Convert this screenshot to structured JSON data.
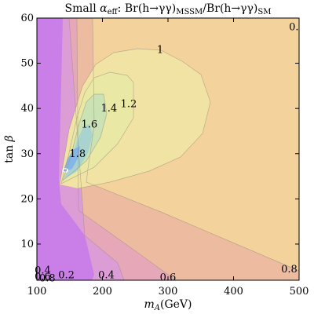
{
  "chart_data": {
    "type": "contour",
    "title": {
      "prefix": "Small ",
      "alpha": "α",
      "alpha_sub": "eff",
      "mid": ": Br(h→γγ)",
      "sub1": "MSSM",
      "slash": "/Br(h→γγ)",
      "sub2": "SM"
    },
    "xlabel": {
      "var": "m",
      "sub": "A",
      "unit": "(GeV)"
    },
    "ylabel": {
      "fn": "tan ",
      "sym": "β"
    },
    "xlim": [
      100,
      500
    ],
    "ylim": [
      2,
      60
    ],
    "xticks": [
      "100",
      "200",
      "300",
      "400",
      "500"
    ],
    "yticks": [
      "10",
      "20",
      "30",
      "40",
      "50",
      "60"
    ],
    "level_labels": [
      {
        "text": "0.",
        "x": 492,
        "y": 58
      },
      {
        "text": "1",
        "x": 288,
        "y": 53
      },
      {
        "text": "1.2",
        "x": 240,
        "y": 41
      },
      {
        "text": "1.4",
        "x": 210,
        "y": 40
      },
      {
        "text": "1.6",
        "x": 180,
        "y": 36.5
      },
      {
        "text": "1.8",
        "x": 162,
        "y": 30
      },
      {
        "text": "0.8",
        "x": 485,
        "y": 4.4
      },
      {
        "text": "0.6",
        "x": 300,
        "y": 2.6
      },
      {
        "text": "0.4",
        "x": 206,
        "y": 3.1
      },
      {
        "text": "0.2",
        "x": 145,
        "y": 3.1
      },
      {
        "text": "0.4",
        "x": 109,
        "y": 4.2
      },
      {
        "text": "0.6",
        "x": 109,
        "y": 2.8
      },
      {
        "text": "0.8",
        "x": 116,
        "y": 2.4
      }
    ],
    "levels": [
      {
        "value": "<0.2",
        "color": "#c97ee8"
      },
      {
        "value": "0.2-0.4",
        "color": "#dc9cd6"
      },
      {
        "value": "0.4-0.6",
        "color": "#e6a7b9"
      },
      {
        "value": "0.6-0.8",
        "color": "#ecbba0"
      },
      {
        "value": "0.8-1.0",
        "color": "#f3d29c"
      },
      {
        "value": "1.0-1.2",
        "color": "#f1e3a3"
      },
      {
        "value": "1.2-1.4",
        "color": "#e9e8a4"
      },
      {
        "value": "1.4-1.6",
        "color": "#cbe2b4"
      },
      {
        "value": "1.6-1.8",
        "color": "#a9d3cf"
      },
      {
        "value": ">1.8",
        "color": "#86b6e7"
      }
    ]
  }
}
